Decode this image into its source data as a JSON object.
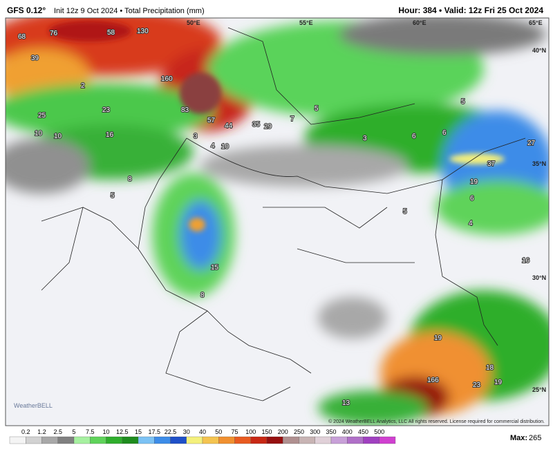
{
  "header": {
    "model": "GFS 0.12°",
    "run": "Init 12z 9 Oct 2024 • Total Precipitation (mm)",
    "hour": "Hour: 384 • Valid: 12z Fri 25 Oct 2024"
  },
  "grid_labels": [
    "50°E",
    "55°E",
    "60°E",
    "65°E",
    "40°N",
    "35°N",
    "30°N",
    "25°N"
  ],
  "point_values": [
    58,
    76,
    130,
    68,
    39,
    160,
    83,
    57,
    44,
    35,
    29,
    23,
    25,
    10,
    10,
    16,
    8,
    5,
    3,
    4,
    6,
    7,
    5,
    3,
    6,
    5,
    27,
    37,
    19,
    6,
    4,
    16,
    15,
    8,
    19,
    18,
    166,
    23,
    19,
    13,
    2,
    10,
    5
  ],
  "logo": "WeatherBELL",
  "copyright": "© 2024 WeatherBELL Analytics, LLC All rights reserved. License required for commercial distribution.",
  "colorbar": {
    "labels": [
      0.2,
      1.2,
      2.5,
      5,
      7.5,
      10,
      12.5,
      15,
      17.5,
      22.5,
      30,
      40,
      50,
      75,
      100,
      150,
      200,
      250,
      300,
      350,
      400,
      450,
      500
    ],
    "colors": [
      "#f4f4f4",
      "#d2d2d2",
      "#a8a8a8",
      "#808080",
      "#a6f0a0",
      "#5fd35a",
      "#2fae2c",
      "#1e8c1e",
      "#7cc2f4",
      "#3c8ce8",
      "#1f50c8",
      "#f4f07c",
      "#f4c450",
      "#f09030",
      "#e85a20",
      "#c82814",
      "#961010",
      "#b09090",
      "#c8b4b4",
      "#e0d0d8",
      "#c8a0d8",
      "#b070c8",
      "#a040c0",
      "#d040d0"
    ]
  },
  "max": {
    "label": "Max:",
    "value": 265
  }
}
